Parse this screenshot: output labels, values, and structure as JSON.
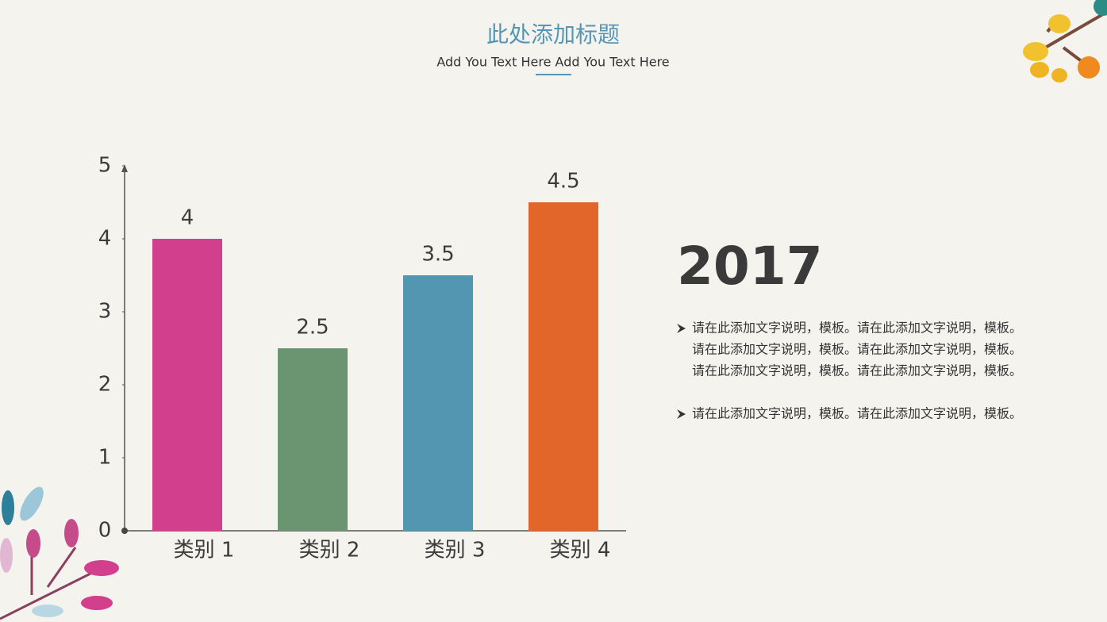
{
  "header": {
    "title": "此处添加标题",
    "subtitle": "Add You Text Here Add You Text Here"
  },
  "chart_data": {
    "type": "bar",
    "categories": [
      "类别 1",
      "类别 2",
      "类别 3",
      "类别 4"
    ],
    "values": [
      4,
      2.5,
      3.5,
      4.5
    ],
    "colors": [
      "#d23f8c",
      "#6a9570",
      "#5396b1",
      "#e2652a"
    ],
    "ylim": [
      0,
      5
    ],
    "yticks": [
      0,
      1,
      2,
      3,
      4,
      5
    ],
    "grid": false
  },
  "side": {
    "year": "2017",
    "bullets": [
      [
        "请在此添加文字说明，模板。请在此添加文字说明，模板。",
        "请在此添加文字说明，模板。请在此添加文字说明，模板。",
        "请在此添加文字说明，模板。请在此添加文字说明，模板。"
      ],
      [
        "请在此添加文字说明，模板。请在此添加文字说明，模板。"
      ]
    ]
  }
}
